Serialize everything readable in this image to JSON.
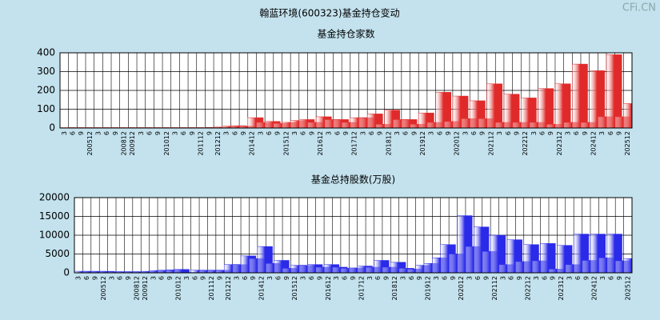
{
  "title": "翰蓝环境(600323)基金持仓变动",
  "watermark": "CFi.CN",
  "chart_data": [
    {
      "type": "bar",
      "title": "基金持仓家数",
      "color": "#e02a2a",
      "grid": true,
      "categories": [
        "3",
        "6",
        "9",
        "200512",
        "3",
        "6",
        "9",
        "200812",
        "200912",
        "3",
        "6",
        "9",
        "201012",
        "3",
        "6",
        "9",
        "201112",
        "9",
        "201212",
        "3",
        "6",
        "9",
        "201412",
        "3",
        "6",
        "9",
        "201512",
        "3",
        "6",
        "9",
        "201612",
        "3",
        "6",
        "9",
        "201712",
        "3",
        "6",
        "9",
        "201812",
        "3",
        "6",
        "9",
        "201912",
        "3",
        "6",
        "9",
        "202012",
        "3",
        "6",
        "9",
        "202112",
        "3",
        "6",
        "9",
        "202212",
        "3",
        "6",
        "9",
        "202312",
        "3",
        "6",
        "9",
        "202412",
        "3",
        "6",
        "9",
        "202512"
      ],
      "values": [
        2,
        2,
        2,
        2,
        2,
        2,
        2,
        2,
        2,
        2,
        2,
        2,
        2,
        2,
        2,
        2,
        2,
        3,
        5,
        10,
        12,
        10,
        55,
        30,
        35,
        25,
        30,
        40,
        45,
        30,
        60,
        45,
        45,
        30,
        55,
        55,
        75,
        20,
        95,
        45,
        45,
        20,
        80,
        30,
        190,
        35,
        170,
        50,
        145,
        50,
        235,
        30,
        180,
        30,
        160,
        30,
        210,
        20,
        235,
        30,
        340,
        30,
        305,
        60,
        390,
        60,
        130
      ],
      "ylim": [
        0,
        400
      ],
      "yticks": [
        0,
        100,
        200,
        300,
        400
      ]
    },
    {
      "type": "bar",
      "title": "基金总持股数(万股)",
      "color": "#2a2ae8",
      "grid": true,
      "categories": [
        "3",
        "6",
        "9",
        "200512",
        "3",
        "6",
        "9",
        "200812",
        "200912",
        "3",
        "6",
        "9",
        "201012",
        "3",
        "6",
        "9",
        "201112",
        "9",
        "201212",
        "3",
        "6",
        "9",
        "201412",
        "3",
        "6",
        "9",
        "201512",
        "3",
        "6",
        "9",
        "201612",
        "3",
        "6",
        "9",
        "201712",
        "3",
        "6",
        "9",
        "201812",
        "3",
        "6",
        "9",
        "201912",
        "3",
        "6",
        "9",
        "202012",
        "3",
        "6",
        "9",
        "202112",
        "3",
        "6",
        "9",
        "202212",
        "3",
        "6",
        "9",
        "202312",
        "3",
        "6",
        "9",
        "202412",
        "3",
        "6",
        "9",
        "202512"
      ],
      "values": [
        400,
        400,
        400,
        400,
        300,
        300,
        300,
        300,
        400,
        600,
        700,
        800,
        900,
        100,
        700,
        700,
        700,
        700,
        2200,
        2200,
        4500,
        3800,
        7000,
        2500,
        3300,
        1200,
        2000,
        2000,
        2200,
        1500,
        2200,
        1500,
        1200,
        1300,
        1800,
        1500,
        3300,
        1500,
        2800,
        1200,
        1000,
        2000,
        2500,
        4000,
        7500,
        5000,
        15200,
        7000,
        12200,
        5700,
        10000,
        2200,
        8800,
        3000,
        7500,
        3200,
        7800,
        1000,
        7300,
        2200,
        10300,
        3300,
        10300,
        4000,
        10300,
        3200,
        3800
      ],
      "ylim": [
        0,
        20000
      ],
      "yticks": [
        0,
        5000,
        10000,
        15000,
        20000
      ]
    }
  ]
}
